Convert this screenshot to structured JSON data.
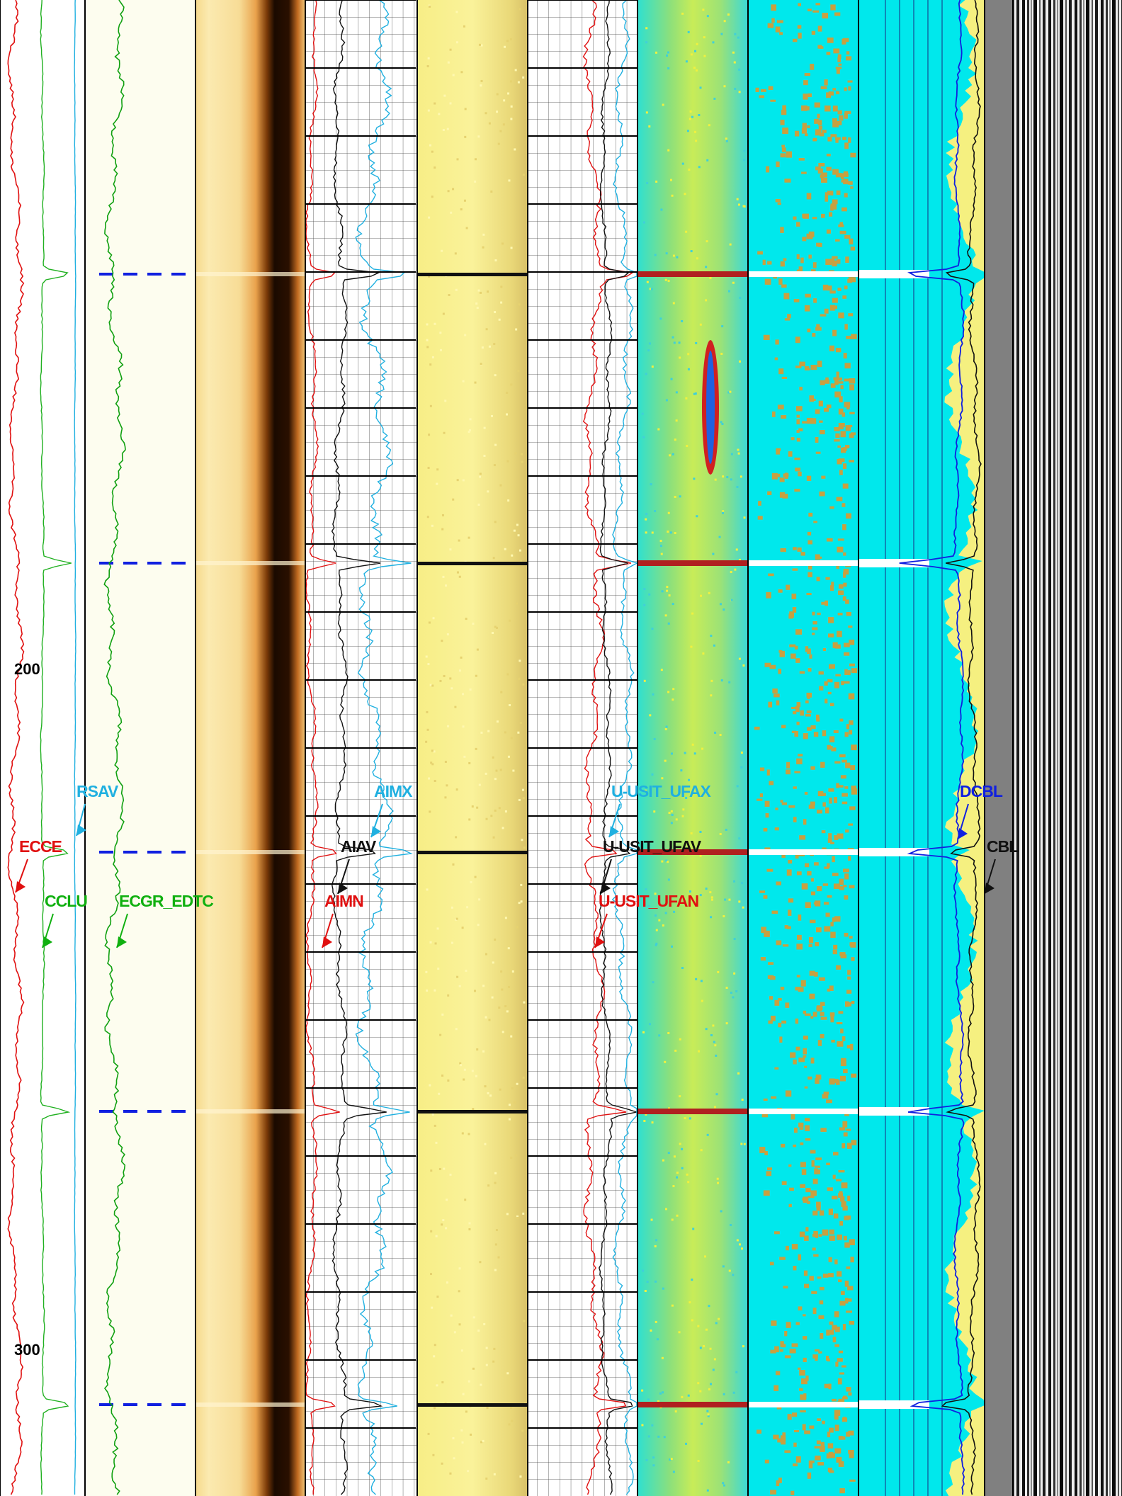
{
  "depth_track": {
    "labels": [
      200,
      300
    ]
  },
  "curves": {
    "labels": [
      "RSAV",
      "ECCE",
      "CCLU",
      "ECGR_EDTC",
      "AIMX",
      "AIAV",
      "AIMN",
      "U-USIT_UFAX",
      "U-USIT_UFAV",
      "U-USIT_UFAN",
      "DCBL",
      "CBL"
    ]
  }
}
